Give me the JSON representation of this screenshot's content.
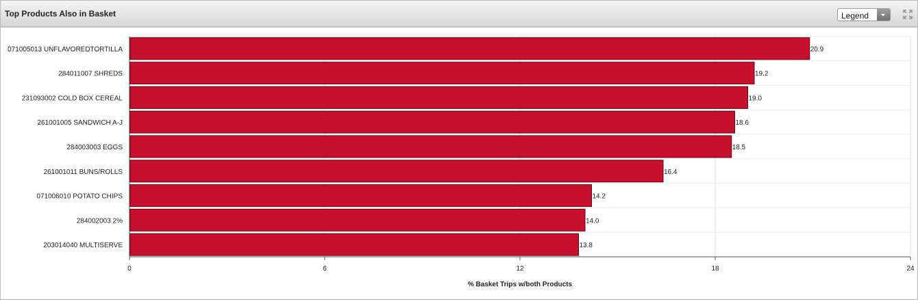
{
  "panel": {
    "title": "Top Products Also in Basket",
    "legend_label": "Legend"
  },
  "chart_data": {
    "type": "bar",
    "orientation": "horizontal",
    "categories": [
      "071005013 UNFLAVOREDTORTILLA",
      "284011007 SHREDS",
      "231093002 COLD BOX CEREAL",
      "261001005 SANDWICH A-J",
      "284003003 EGGS",
      "261001011 BUNS/ROLLS",
      "071006010 POTATO CHIPS",
      "284002003 2%",
      "203014040 MULTISERVE"
    ],
    "values": [
      20.9,
      19.2,
      19.0,
      18.6,
      18.5,
      16.4,
      14.2,
      14.0,
      13.8
    ],
    "value_labels": [
      "20.9",
      "19.2",
      "19.0",
      "18.6",
      "18.5",
      "16.4",
      "14.2",
      "14.0",
      "13.8"
    ],
    "xlabel": "% Basket Trips w/both Products",
    "ylabel": "",
    "xlim": [
      0,
      24
    ],
    "xticks": [
      0,
      6,
      12,
      18,
      24
    ],
    "grid": true,
    "bar_color": "#c8102e"
  }
}
